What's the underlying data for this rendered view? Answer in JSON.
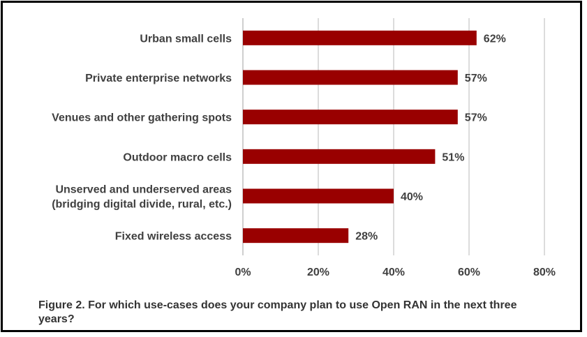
{
  "chart_data": {
    "type": "bar",
    "orientation": "horizontal",
    "categories": [
      [
        "Urban small cells"
      ],
      [
        "Private enterprise networks"
      ],
      [
        "Venues and other gathering spots"
      ],
      [
        "Outdoor macro cells"
      ],
      [
        "Unserved and underserved areas",
        "(bridging digital divide, rural, etc.)"
      ],
      [
        "Fixed wireless access"
      ]
    ],
    "values": [
      62,
      57,
      57,
      51,
      40,
      28
    ],
    "value_labels": [
      "62%",
      "57%",
      "57%",
      "51%",
      "40%",
      "28%"
    ],
    "xlim": [
      0,
      80
    ],
    "x_ticks": [
      0,
      20,
      40,
      60,
      80
    ],
    "x_tick_labels": [
      "0%",
      "20%",
      "40%",
      "60%",
      "80%"
    ],
    "grid": "vertical",
    "legend": "none",
    "bar_color": "#990000"
  },
  "caption": "Figure 2. For which use-cases does your company plan to use Open RAN in the next three years?"
}
